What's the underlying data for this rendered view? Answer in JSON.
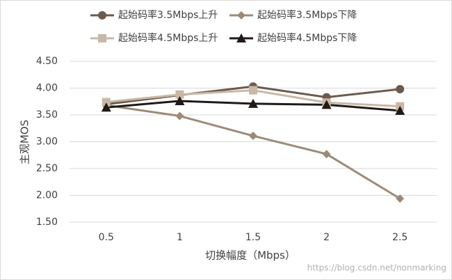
{
  "chart_data": {
    "type": "line",
    "categories": [
      "0.5",
      "1",
      "1.5",
      "2",
      "2.5"
    ],
    "series": [
      {
        "name": "起始码率3.5Mbps上升",
        "color": "#6b5a4e",
        "marker": "circle",
        "values": [
          3.7,
          3.87,
          4.03,
          3.83,
          3.98
        ]
      },
      {
        "name": "起始码率3.5Mbps下降",
        "color": "#9c8a78",
        "marker": "diamond",
        "values": [
          3.68,
          3.48,
          3.11,
          2.77,
          1.94
        ]
      },
      {
        "name": "起始码率4.5Mbps上升",
        "color": "#c9b8a6",
        "marker": "square",
        "values": [
          3.74,
          3.88,
          3.96,
          3.73,
          3.66
        ]
      },
      {
        "name": "起始码率4.5Mbps下降",
        "color": "#1f1a17",
        "marker": "triangle",
        "values": [
          3.64,
          3.76,
          3.71,
          3.69,
          3.58
        ]
      }
    ],
    "ylim": [
      1.5,
      4.5
    ],
    "yticks": [
      {
        "value": 1.5,
        "label": "1.50"
      },
      {
        "value": 2.0,
        "label": "2.00"
      },
      {
        "value": 2.5,
        "label": "2.50"
      },
      {
        "value": 3.0,
        "label": "3.00"
      },
      {
        "value": 3.5,
        "label": "3.50"
      },
      {
        "value": 4.0,
        "label": "4.00"
      },
      {
        "value": 4.5,
        "label": "4.50"
      }
    ],
    "y_label": "主观MOS",
    "x_label": "切换幅度（Mbps）",
    "grid": true,
    "watermark": "https://blog.csdn.net/nonmarking"
  }
}
